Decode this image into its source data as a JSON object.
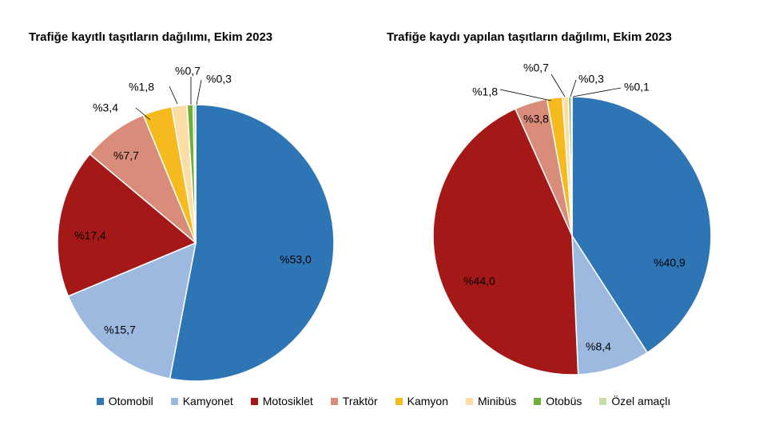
{
  "chart_data": [
    {
      "type": "pie",
      "title": "Trafiğe kayıtlı taşıtların dağılımı, Ekim 2023",
      "categories": [
        "Otomobil",
        "Kamyonet",
        "Motosiklet",
        "Traktör",
        "Kamyon",
        "Minibüs",
        "Otobüs",
        "Özel amaçlı"
      ],
      "values": [
        53.0,
        15.7,
        17.4,
        7.7,
        3.4,
        1.8,
        0.7,
        0.3
      ],
      "labels": [
        "%53,0",
        "%15,7",
        "%17,4",
        "%7,7",
        "%3,4",
        "%1,8",
        "%0,7",
        "%0,3"
      ]
    },
    {
      "type": "pie",
      "title": "Trafiğe kaydı yapılan taşıtların dağılımı, Ekim 2023",
      "categories": [
        "Otomobil",
        "Kamyonet",
        "Motosiklet",
        "Traktör",
        "Kamyon",
        "Minibüs",
        "Otobüs",
        "Özel amaçlı"
      ],
      "values": [
        40.9,
        8.4,
        44.0,
        3.8,
        1.8,
        0.7,
        0.3,
        0.1
      ],
      "labels": [
        "%40,9",
        "%8,4",
        "%44,0",
        "%3,8",
        "%1,8",
        "%0,7",
        "%0,3",
        "%0,1"
      ]
    }
  ],
  "legend": [
    "Otomobil",
    "Kamyonet",
    "Motosiklet",
    "Traktör",
    "Kamyon",
    "Minibüs",
    "Otobüs",
    "Özel amaçlı"
  ],
  "colors": [
    "#2E75B6",
    "#9DB9E0",
    "#A51818",
    "#D98C7A",
    "#F5BA1E",
    "#FCDDA6",
    "#6EAE3A",
    "#C6DFA8"
  ]
}
